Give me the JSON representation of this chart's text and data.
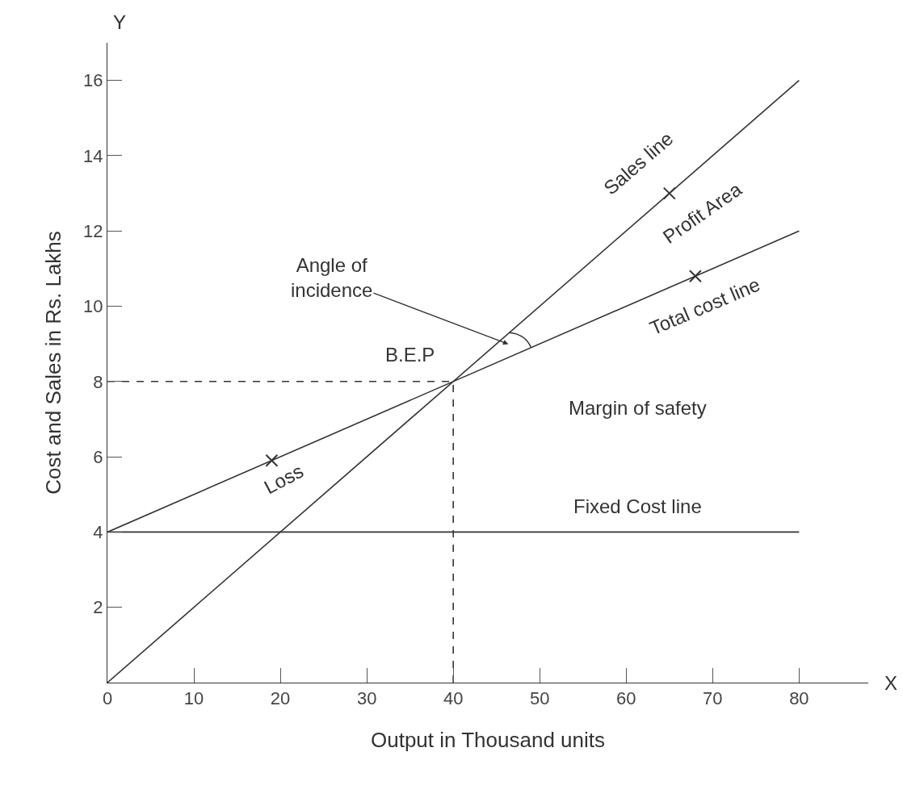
{
  "chart_data": {
    "type": "line",
    "xlabel": "Output in Thousand units",
    "ylabel": "Cost and Sales in Rs. Lakhs",
    "series": [
      {
        "color": "#333333",
        "x": [
          0,
          80
        ],
        "values": [
          0,
          16
        ],
        "line_style": "solid"
      },
      {
        "color": "#333333",
        "x": [
          0,
          80
        ],
        "values": [
          4,
          12
        ],
        "line_style": "solid"
      },
      {
        "color": "#333333",
        "x": [
          0,
          80
        ],
        "values": [
          4,
          4
        ],
        "line_style": "solid"
      },
      {
        "color": "#333333",
        "x": [
          0,
          40
        ],
        "values": [
          8,
          8
        ],
        "line_style": "dashed"
      },
      {
        "color": "#333333",
        "x": [
          40,
          40
        ],
        "values": [
          0,
          8
        ],
        "line_style": "dashed"
      },
      {
        "type": "scatter",
        "color": "#333333",
        "x": [
          19,
          65,
          68
        ],
        "values": [
          5.9,
          13,
          10.8
        ],
        "marker": "cross"
      }
    ],
    "xlim": [
      0,
      88
    ],
    "ylim": [
      0,
      17
    ],
    "xticks": [
      0,
      10,
      20,
      30,
      40,
      50,
      60,
      70,
      80
    ],
    "yticks": [
      2,
      4,
      6,
      8,
      10,
      12,
      14,
      16
    ],
    "grid": false,
    "annotations": [
      "Sales line",
      "Profit Area",
      "Total cost line",
      "Loss",
      "Angle of\nincidence",
      "B.E.P",
      "Margin of safety",
      "Fixed Cost line",
      "X",
      "Y"
    ]
  }
}
